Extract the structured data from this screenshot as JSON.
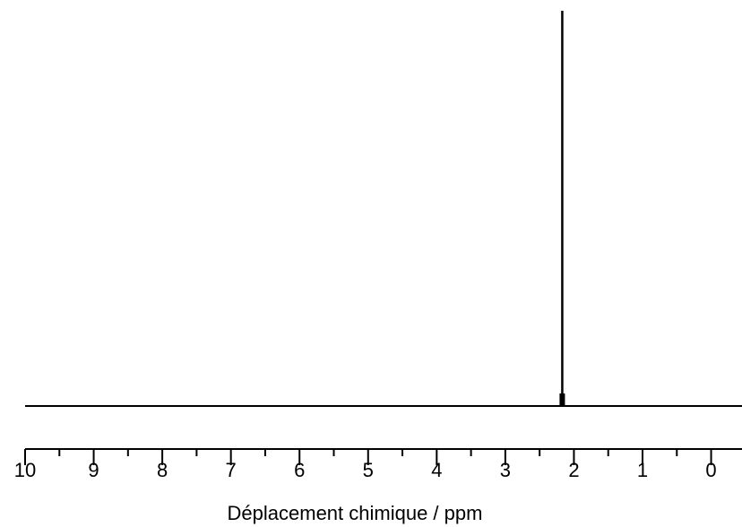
{
  "chart_data": {
    "type": "line",
    "title": "",
    "xlabel": "Déplacement chimique / ppm",
    "ylabel": "",
    "x_reversed": true,
    "xlim": [
      10,
      -0.45
    ],
    "x_major_ticks": [
      10,
      9,
      8,
      7,
      6,
      5,
      4,
      3,
      2,
      1,
      0
    ],
    "x_tick_labels": [
      "10",
      "9",
      "8",
      "7",
      "6",
      "5",
      "4",
      "3",
      "2",
      "1",
      "0"
    ],
    "x_minor_ticks": [
      9.5,
      8.5,
      7.5,
      6.5,
      5.5,
      4.5,
      3.5,
      2.5,
      1.5,
      0.5
    ],
    "y_axis_shown": false,
    "grid": false,
    "legend": "none",
    "series": [
      {
        "baseline": 0,
        "peaks": [
          {
            "shift_ppm": 2.17,
            "relative_intensity": 1.0
          }
        ]
      }
    ],
    "line_color": "#000000"
  }
}
